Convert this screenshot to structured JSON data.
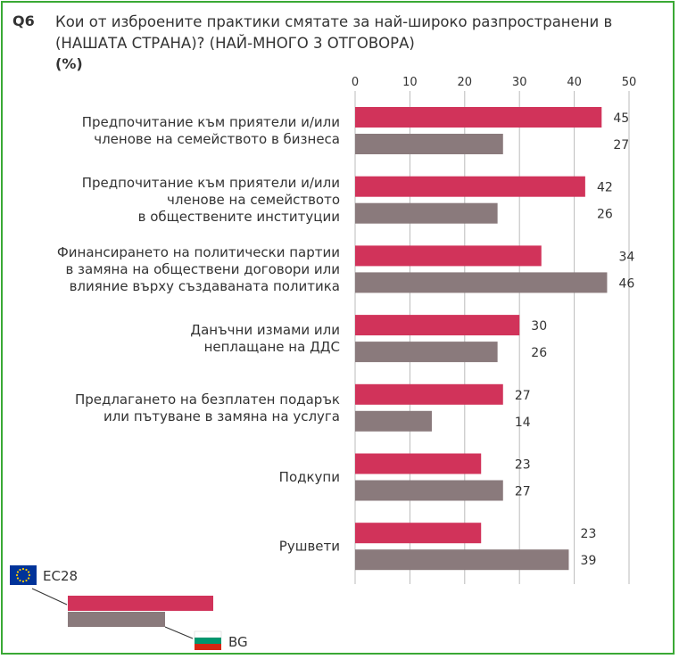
{
  "question": {
    "number": "Q6",
    "text": "Кои от изброените практики смятате за най-широко разпространени в (НАШАТА СТРАНА)? (НАЙ-МНОГО 3 ОТГОВОРА)",
    "unit": "(%)"
  },
  "colors": {
    "eu": "#d1335a",
    "bg": "#8a7a7c",
    "axis": "#bbbbbb",
    "frame": "#3aa935"
  },
  "chart_data": {
    "type": "bar",
    "orientation": "horizontal",
    "xlim": [
      0,
      50
    ],
    "ticks": [
      0,
      10,
      20,
      30,
      40,
      50
    ],
    "categories": [
      [
        "Предпочитание към приятели и/или",
        "членове на семейството в бизнеса"
      ],
      [
        "Предпочитание към приятели и/или",
        "членове на семейството",
        "в обществените институции"
      ],
      [
        "Финансирането на политически партии",
        "в замяна на обществени договори или",
        "влияние върху създаваната политика"
      ],
      [
        "Данъчни измами или",
        "неплащане на ДДС"
      ],
      [
        "Предлагането на безплатен подарък",
        "или пътуване в замяна на услуга"
      ],
      [
        "Подкупи"
      ],
      [
        "Рушвети"
      ]
    ],
    "series": [
      {
        "name": "ЕС28",
        "values": [
          45,
          42,
          34,
          30,
          27,
          23,
          23
        ]
      },
      {
        "name": "BG",
        "values": [
          27,
          26,
          46,
          26,
          14,
          27,
          39
        ]
      }
    ],
    "grid": true,
    "legend": "bottom-left"
  }
}
